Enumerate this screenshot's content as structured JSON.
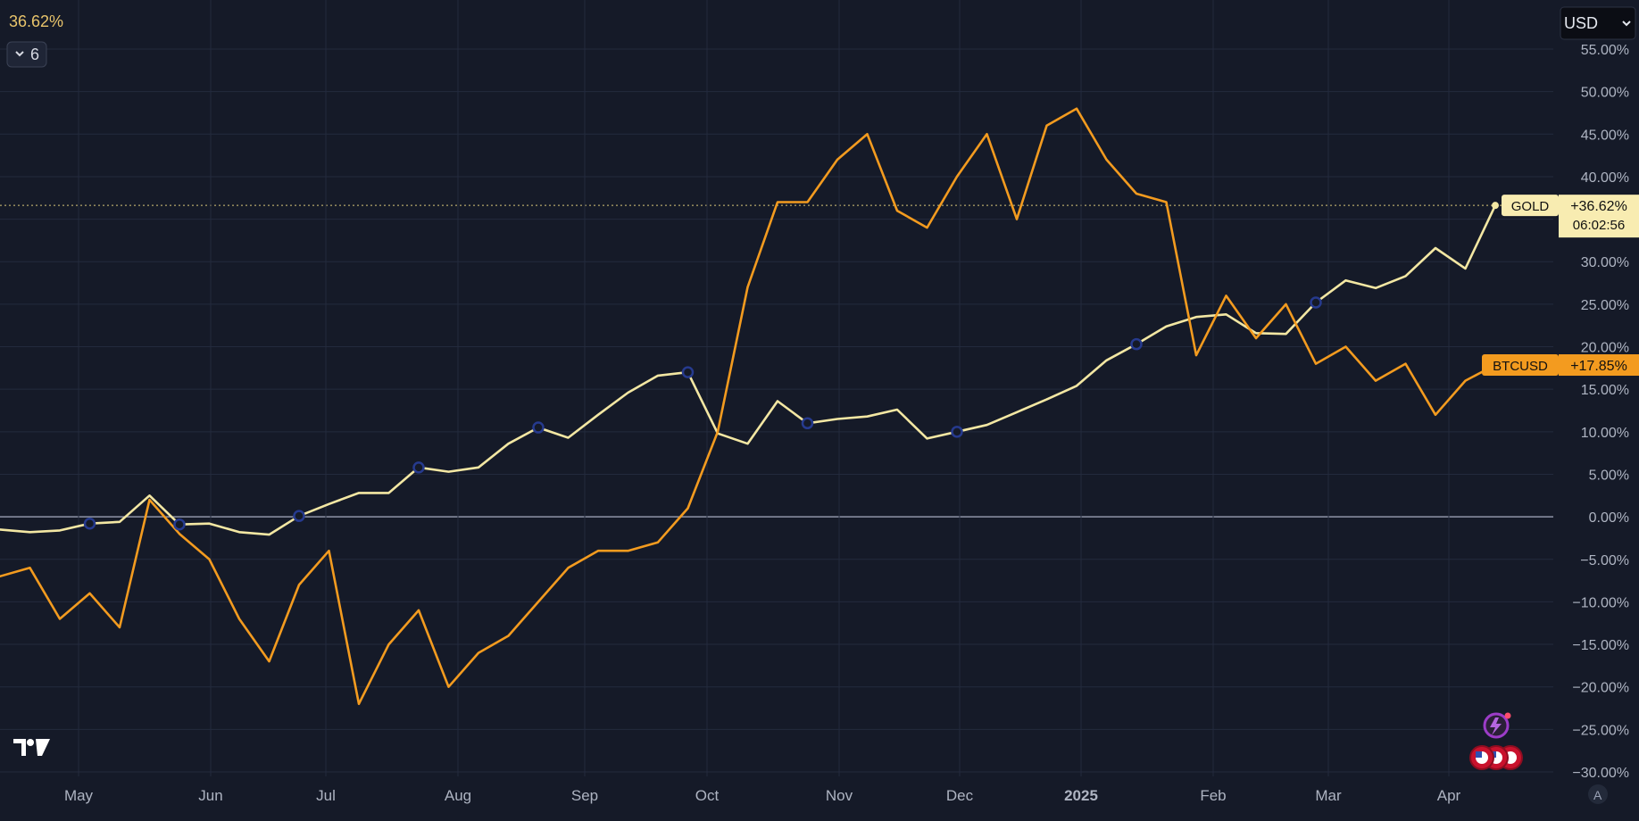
{
  "header": {
    "change_value": "36.62%",
    "indicator_count": "6",
    "currency": "USD"
  },
  "colors": {
    "background": "#151a28",
    "grid": "#232a3d",
    "gold_line": "#f3e7a3",
    "btc_line": "#f39b1f",
    "zero_line": "#8f95a7",
    "axis_text": "#aeb4c2",
    "marker": "#263a8e"
  },
  "chart_data": {
    "type": "line",
    "x_tick_labels": [
      "May",
      "Jun",
      "Jul",
      "Aug",
      "Sep",
      "Oct",
      "Nov",
      "Dec",
      "2025",
      "Feb",
      "Mar",
      "Apr"
    ],
    "y_tick_labels": [
      "55.00%",
      "50.00%",
      "45.00%",
      "40.00%",
      "35.00%",
      "30.00%",
      "25.00%",
      "20.00%",
      "15.00%",
      "10.00%",
      "5.00%",
      "0.00%",
      "−5.00%",
      "−10.00%",
      "−15.00%",
      "−20.00%",
      "−25.00%",
      "−30.00%"
    ],
    "ylim": [
      -30,
      55
    ],
    "reference_value": 36.62,
    "x_scale_note": "trading index",
    "series": [
      {
        "name": "GOLD",
        "tag_value": "+36.62%",
        "tag_time": "06:02:56",
        "x": [
          0,
          10,
          20,
          30,
          40,
          50,
          60,
          70,
          80,
          90,
          100,
          110,
          120,
          130,
          140,
          150,
          160,
          170,
          180,
          190,
          200,
          210,
          220,
          230,
          240,
          250,
          260,
          270,
          280,
          290,
          300,
          310,
          320,
          330,
          340,
          350,
          360,
          370,
          380,
          390,
          400,
          410,
          420,
          430,
          440,
          450,
          460,
          470,
          480,
          490,
          500
        ],
        "values": [
          -1.5,
          -1.8,
          -1.6,
          -0.8,
          -0.6,
          2.5,
          -0.9,
          -0.8,
          -1.8,
          -2.1,
          0.1,
          1.5,
          2.8,
          2.8,
          5.8,
          5.3,
          5.8,
          8.6,
          10.5,
          9.3,
          12.0,
          14.6,
          16.6,
          17.0,
          9.8,
          8.6,
          13.6,
          11.0,
          11.5,
          11.8,
          12.6,
          9.2,
          10.0,
          10.8,
          12.3,
          13.8,
          15.4,
          18.4,
          20.3,
          22.4,
          23.5,
          23.8,
          21.6,
          21.5,
          25.2,
          27.8,
          26.9,
          28.3,
          31.6,
          29.2,
          36.62
        ]
      },
      {
        "name": "BTCUSD",
        "tag_value": "+17.85%",
        "x": [
          0,
          10,
          20,
          30,
          40,
          50,
          60,
          70,
          80,
          90,
          100,
          110,
          120,
          130,
          140,
          150,
          160,
          170,
          180,
          190,
          200,
          210,
          220,
          230,
          240,
          250,
          260,
          270,
          280,
          290,
          300,
          310,
          320,
          330,
          340,
          350,
          360,
          370,
          380,
          390,
          400,
          410,
          420,
          430,
          440,
          450,
          460,
          470,
          480,
          490,
          500
        ],
        "values": [
          -7,
          -6,
          -12,
          -9,
          -13,
          2,
          -2,
          -5,
          -12,
          -17,
          -8,
          -4,
          -22,
          -15,
          -11,
          -20,
          -16,
          -14,
          -10,
          -6,
          -4,
          -4,
          -3,
          1,
          10,
          27,
          37,
          37,
          42,
          45,
          36,
          34,
          40,
          45,
          35,
          46,
          48,
          42,
          38,
          37,
          19,
          26,
          21,
          25,
          18,
          20,
          16,
          18,
          12,
          16,
          17.85
        ]
      }
    ],
    "event_markers_gold_x": [
      30,
      60,
      100,
      140,
      180,
      230,
      270,
      320,
      380,
      440
    ]
  },
  "bottom_icons": {
    "logo": "tradingview-logo",
    "flash": "lightning-icon",
    "flags": "us-flag-icon",
    "auto": "A"
  }
}
